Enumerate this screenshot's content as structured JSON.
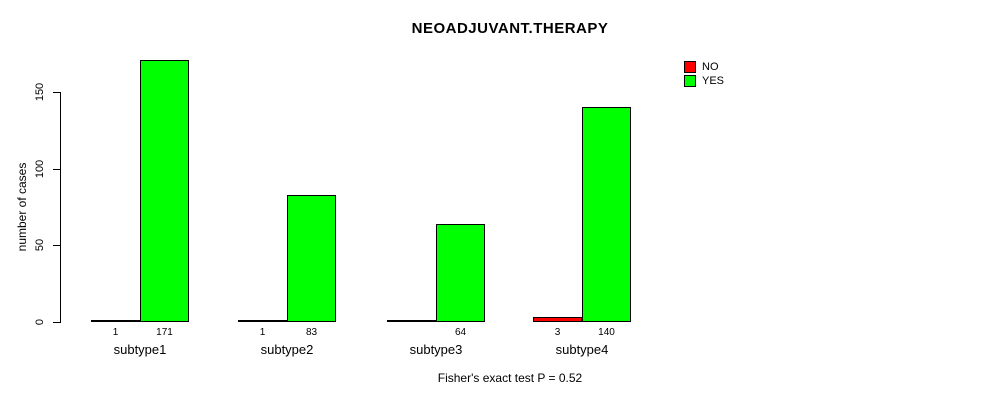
{
  "chart_data": {
    "type": "bar",
    "title": "NEOADJUVANT.THERAPY",
    "xlabel": "",
    "ylabel": "number of cases",
    "caption": "Fisher's exact test P = 0.52",
    "categories": [
      "subtype1",
      "subtype2",
      "subtype3",
      "subtype4"
    ],
    "series": [
      {
        "name": "NO",
        "color": "#ff0000",
        "values": [
          1,
          1,
          0,
          3
        ]
      },
      {
        "name": "YES",
        "color": "#00ff00",
        "values": [
          171,
          83,
          64,
          140
        ]
      }
    ],
    "value_labels": [
      [
        "1",
        "171"
      ],
      [
        "1",
        "83"
      ],
      [
        "",
        "64"
      ],
      [
        "3",
        "140"
      ]
    ],
    "yticks": [
      0,
      50,
      100,
      150
    ],
    "ylim": [
      0,
      150
    ],
    "grid": false,
    "legend_position": "top-right",
    "axis_color": "#000000",
    "background_color": "#ffffff"
  }
}
